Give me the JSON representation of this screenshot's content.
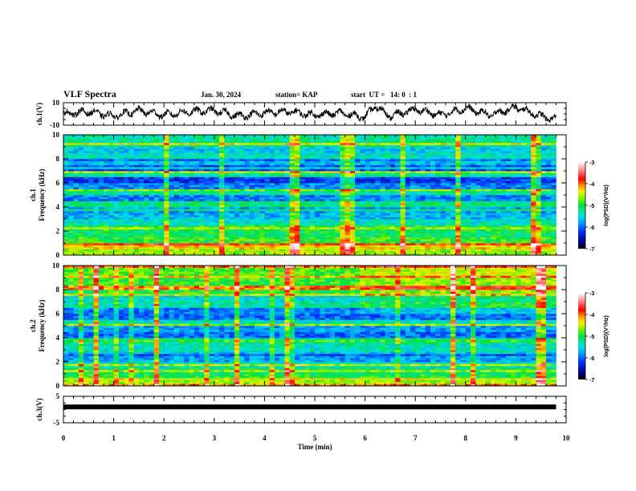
{
  "header": {
    "title": "VLF Spectra",
    "date": "Jan. 30, 2024",
    "station": "station= KAP",
    "start_ut": "start  UT =   14: 0  : 1"
  },
  "chart_data": [
    {
      "type": "line",
      "name": "ch1-waveform",
      "ylabel": "ch.1(V)",
      "ylim": [
        -10,
        10
      ],
      "yticks": [
        -10,
        10
      ],
      "xlim": [
        0,
        10
      ],
      "data_end_min": 9.8,
      "description": "noisy waveform oscillating roughly between -8 and +8 V with slower broad peaks after 6 min",
      "envelope_x": [
        0,
        0.5,
        1,
        1.5,
        2,
        2.5,
        3,
        3.5,
        4,
        4.5,
        5,
        5.5,
        6,
        6.2,
        6.5,
        7,
        7.5,
        8,
        8.5,
        9,
        9.5,
        9.8
      ],
      "envelope_y": [
        0,
        2,
        -2,
        3,
        -1,
        2,
        3,
        -2,
        1,
        2,
        -1,
        1,
        -3,
        7,
        -2,
        4,
        -1,
        5,
        -1,
        6,
        -2,
        -5
      ]
    },
    {
      "type": "heatmap",
      "name": "ch1-spectrogram",
      "ylabel": "ch.1\nFrequency (kHz)",
      "ylim": [
        0,
        10
      ],
      "yticks": [
        0,
        2,
        4,
        6,
        8,
        10
      ],
      "xlim": [
        0,
        10
      ],
      "data_end_min": 9.8,
      "colorbar": {
        "label": "log(PSD)(V²/Hz)",
        "range": [
          -7,
          -3
        ],
        "ticks": [
          -3,
          -4,
          -5,
          -6,
          -7
        ]
      },
      "band_levels_khz": [
        {
          "f": 0.0,
          "level": -4.6
        },
        {
          "f": 0.5,
          "level": -4.3
        },
        {
          "f": 1.0,
          "level": -4.9
        },
        {
          "f": 1.5,
          "level": -5.1
        },
        {
          "f": 2.0,
          "level": -5.0
        },
        {
          "f": 2.5,
          "level": -5.4
        },
        {
          "f": 3.0,
          "level": -5.7
        },
        {
          "f": 3.5,
          "level": -5.8
        },
        {
          "f": 4.0,
          "level": -5.2
        },
        {
          "f": 4.5,
          "level": -5.9
        },
        {
          "f": 5.0,
          "level": -5.3
        },
        {
          "f": 5.5,
          "level": -5.9
        },
        {
          "f": 6.0,
          "level": -6.2
        },
        {
          "f": 6.5,
          "level": -5.3
        },
        {
          "f": 7.0,
          "level": -6.1
        },
        {
          "f": 7.5,
          "level": -6.0
        },
        {
          "f": 8.0,
          "level": -5.4
        },
        {
          "f": 8.5,
          "level": -5.6
        },
        {
          "f": 9.0,
          "level": -5.2
        },
        {
          "f": 9.5,
          "level": -5.3
        }
      ]
    },
    {
      "type": "heatmap",
      "name": "ch2-spectrogram",
      "ylabel": "ch.2\nFrequency (kHz)",
      "ylim": [
        0,
        10
      ],
      "yticks": [
        0,
        2,
        4,
        6,
        8,
        10
      ],
      "xlim": [
        0,
        10
      ],
      "data_end_min": 9.8,
      "colorbar": {
        "label": "log(PSD)(V²/Hz)",
        "range": [
          -7,
          -3
        ],
        "ticks": [
          -3,
          -4,
          -5,
          -6,
          -7
        ]
      },
      "band_levels_khz": [
        {
          "f": 0.0,
          "level": -4.6
        },
        {
          "f": 0.5,
          "level": -5.0
        },
        {
          "f": 1.0,
          "level": -5.1
        },
        {
          "f": 1.5,
          "level": -5.4
        },
        {
          "f": 2.0,
          "level": -5.8
        },
        {
          "f": 2.5,
          "level": -6.1
        },
        {
          "f": 3.0,
          "level": -5.4
        },
        {
          "f": 3.5,
          "level": -5.2
        },
        {
          "f": 4.0,
          "level": -6.0
        },
        {
          "f": 4.5,
          "level": -5.8
        },
        {
          "f": 5.0,
          "level": -5.4
        },
        {
          "f": 5.5,
          "level": -6.0
        },
        {
          "f": 6.0,
          "level": -5.9
        },
        {
          "f": 6.5,
          "level": -5.3
        },
        {
          "f": 7.0,
          "level": -5.5
        },
        {
          "f": 7.5,
          "level": -5.0
        },
        {
          "f": 8.0,
          "level": -4.9
        },
        {
          "f": 8.5,
          "level": -4.9
        },
        {
          "f": 9.0,
          "level": -4.8
        },
        {
          "f": 9.5,
          "level": -4.8
        }
      ]
    },
    {
      "type": "line",
      "name": "ch3-waveform",
      "ylabel": "ch.3(V)",
      "ylim": [
        -5,
        5
      ],
      "yticks": [
        -5,
        5
      ],
      "xlim": [
        0,
        10
      ],
      "data_end_min": 9.8,
      "description": "nearly constant thick trace near +1 V",
      "x": [
        0,
        9.8
      ],
      "y": [
        1.0,
        1.0
      ]
    }
  ],
  "xaxis": {
    "label": "Time (min)",
    "ticks": [
      0,
      1,
      2,
      3,
      4,
      5,
      6,
      7,
      8,
      9,
      10
    ]
  }
}
